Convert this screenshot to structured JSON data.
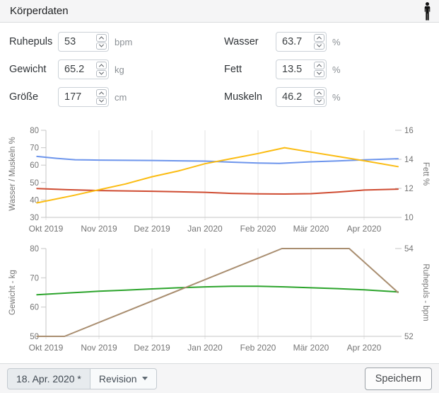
{
  "header": {
    "title": "Körperdaten"
  },
  "form": {
    "fields": [
      {
        "label": "Ruhepuls",
        "value": "53",
        "unit": "bpm"
      },
      {
        "label": "Gewicht",
        "value": "65.2",
        "unit": "kg"
      },
      {
        "label": "Größe",
        "value": "177",
        "unit": "cm"
      },
      {
        "label": "Wasser",
        "value": "63.7",
        "unit": "%"
      },
      {
        "label": "Fett",
        "value": "13.5",
        "unit": "%"
      },
      {
        "label": "Muskeln",
        "value": "46.2",
        "unit": "%"
      }
    ]
  },
  "chart_data": [
    {
      "type": "line",
      "x_tick_labels": [
        "Okt 2019",
        "Nov 2019",
        "Dez 2019",
        "Jan 2020",
        "Feb 2020",
        "Mär 2020",
        "Apr 2020"
      ],
      "left_axis": {
        "title": "Wasser / Muskeln %",
        "min": 30,
        "max": 80,
        "ticks": [
          30,
          40,
          50,
          60,
          70,
          80
        ]
      },
      "right_axis": {
        "title": "Fett %",
        "min": 10,
        "max": 16,
        "ticks": [
          10,
          12,
          14,
          16
        ]
      },
      "grid": "vertical-only",
      "legend": "none",
      "series": [
        {
          "name": "Wasser",
          "axis": "left",
          "color": "#6d95ec",
          "points": [
            [
              -0.17,
              65.0
            ],
            [
              0.2,
              63.9
            ],
            [
              0.55,
              63.1
            ],
            [
              1,
              62.9
            ],
            [
              2,
              62.7
            ],
            [
              3,
              62.3
            ],
            [
              3.5,
              61.7
            ],
            [
              4,
              61.2
            ],
            [
              4.4,
              61.0
            ],
            [
              5,
              61.9
            ],
            [
              5.5,
              62.4
            ],
            [
              6,
              63.0
            ],
            [
              6.64,
              63.7
            ]
          ]
        },
        {
          "name": "Muskeln",
          "axis": "left",
          "color": "#cf4c32",
          "points": [
            [
              -0.17,
              46.6
            ],
            [
              0.4,
              45.9
            ],
            [
              1,
              45.4
            ],
            [
              2,
              45.0
            ],
            [
              3,
              44.4
            ],
            [
              3.5,
              43.8
            ],
            [
              4,
              43.5
            ],
            [
              4.5,
              43.4
            ],
            [
              5,
              43.6
            ],
            [
              5.5,
              44.5
            ],
            [
              6,
              45.7
            ],
            [
              6.64,
              46.2
            ]
          ]
        },
        {
          "name": "Fett",
          "axis": "right",
          "color": "#fbbc12",
          "points": [
            [
              -0.17,
              11.0
            ],
            [
              0.5,
              11.5
            ],
            [
              1,
              11.9
            ],
            [
              1.5,
              12.3
            ],
            [
              2,
              12.8
            ],
            [
              2.5,
              13.2
            ],
            [
              3,
              13.7
            ],
            [
              3.5,
              14.05
            ],
            [
              4,
              14.4
            ],
            [
              4.5,
              14.8
            ],
            [
              5,
              14.5
            ],
            [
              5.5,
              14.2
            ],
            [
              6,
              13.9
            ],
            [
              6.64,
              13.5
            ]
          ]
        }
      ]
    },
    {
      "type": "line",
      "x_tick_labels": [
        "Okt 2019",
        "Nov 2019",
        "Dez 2019",
        "Jan 2020",
        "Feb 2020",
        "Mär 2020",
        "Apr 2020"
      ],
      "left_axis": {
        "title": "Gewicht - kg",
        "min": 50,
        "max": 80,
        "ticks": [
          50,
          60,
          70,
          80
        ]
      },
      "right_axis": {
        "title": "Ruhepuls - bpm",
        "min": 52,
        "max": 54,
        "ticks": [
          52,
          54
        ]
      },
      "grid": "vertical-only",
      "legend": "none",
      "series": [
        {
          "name": "Gewicht",
          "axis": "left",
          "color": "#2ca42c",
          "points": [
            [
              -0.17,
              64.2
            ],
            [
              0.5,
              64.9
            ],
            [
              1,
              65.4
            ],
            [
              1.5,
              65.8
            ],
            [
              2,
              66.2
            ],
            [
              2.5,
              66.6
            ],
            [
              3,
              66.9
            ],
            [
              3.5,
              67.1
            ],
            [
              4,
              67.1
            ],
            [
              4.5,
              66.9
            ],
            [
              5,
              66.6
            ],
            [
              5.5,
              66.3
            ],
            [
              6,
              65.9
            ],
            [
              6.64,
              65.2
            ]
          ]
        },
        {
          "name": "Ruhepuls",
          "axis": "right",
          "color": "#a98e70",
          "points": [
            [
              -0.17,
              52.0
            ],
            [
              0.35,
              52.0
            ],
            [
              4.45,
              54.0
            ],
            [
              5.72,
              54.0
            ],
            [
              6.64,
              53.0
            ]
          ]
        }
      ]
    }
  ],
  "footer": {
    "date_label": "18. Apr. 2020 *",
    "revision_label": "Revision",
    "save_label": "Speichern"
  }
}
